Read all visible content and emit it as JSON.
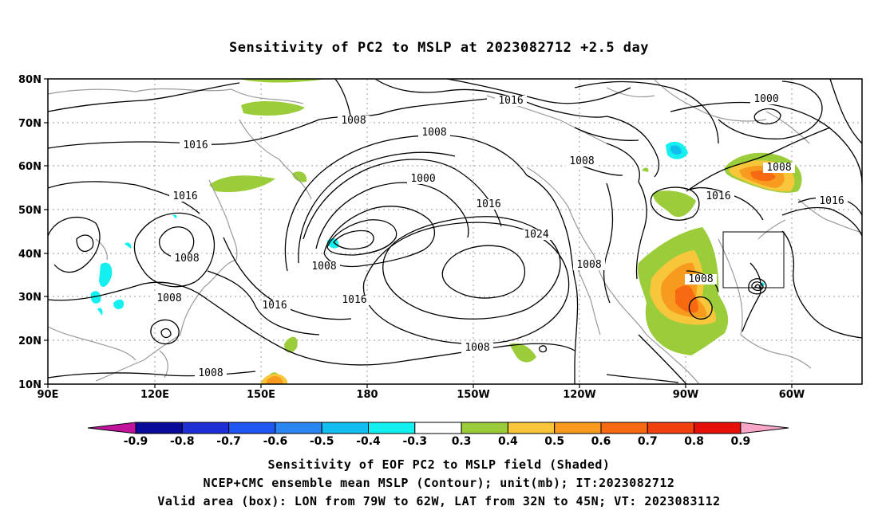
{
  "title": "Sensitivity of PC2 to MSLP at 2023082712 +2.5 day",
  "map": {
    "lat_labels": [
      "80N",
      "70N",
      "60N",
      "50N",
      "40N",
      "30N",
      "20N",
      "10N"
    ],
    "lon_labels": [
      "90E",
      "120E",
      "150E",
      "180",
      "150W",
      "120W",
      "90W",
      "60W"
    ],
    "contour_labels": [
      {
        "text": "1016"
      },
      {
        "text": "1008"
      },
      {
        "text": "1008"
      },
      {
        "text": "1016"
      },
      {
        "text": "1000"
      },
      {
        "text": "1008"
      },
      {
        "text": "1000"
      },
      {
        "text": "1008"
      },
      {
        "text": "1016"
      },
      {
        "text": "1016"
      },
      {
        "text": "1016"
      },
      {
        "text": "1016"
      },
      {
        "text": "1024"
      },
      {
        "text": "1008"
      },
      {
        "text": "1008"
      },
      {
        "text": "1008"
      },
      {
        "text": "1016"
      },
      {
        "text": "1008"
      },
      {
        "text": "1008"
      },
      {
        "text": "1016"
      },
      {
        "text": "1008"
      },
      {
        "text": "1008"
      }
    ],
    "valid_box": {
      "lon_from": "79W",
      "lon_to": "62W",
      "lat_from": "32N",
      "lat_to": "45N"
    }
  },
  "colorbar": {
    "labels": [
      "-0.9",
      "-0.8",
      "-0.7",
      "-0.6",
      "-0.5",
      "-0.4",
      "-0.3",
      "0.3",
      "0.4",
      "0.5",
      "0.6",
      "0.7",
      "0.8",
      "0.9"
    ],
    "colors": [
      "#0a0a9a",
      "#1f2fd6",
      "#1f55f0",
      "#2a86f0",
      "#12bdf0",
      "#14f0f0",
      "#ffffff",
      "#9bcd3a",
      "#f7c63a",
      "#f79a1e",
      "#f76a12",
      "#f0400f",
      "#e6100a"
    ],
    "low_end_color": "#c0129a",
    "high_end_color": "#f7a6c8"
  },
  "captions": {
    "line1": "Sensitivity of EOF PC2 to MSLP field (Shaded)",
    "line2": "NCEP+CMC ensemble mean MSLP (Contour); unit(mb); IT:2023082712",
    "line3": "Valid area (box): LON from 79W to 62W, LAT from 32N to 45N; VT: 2023083112"
  }
}
